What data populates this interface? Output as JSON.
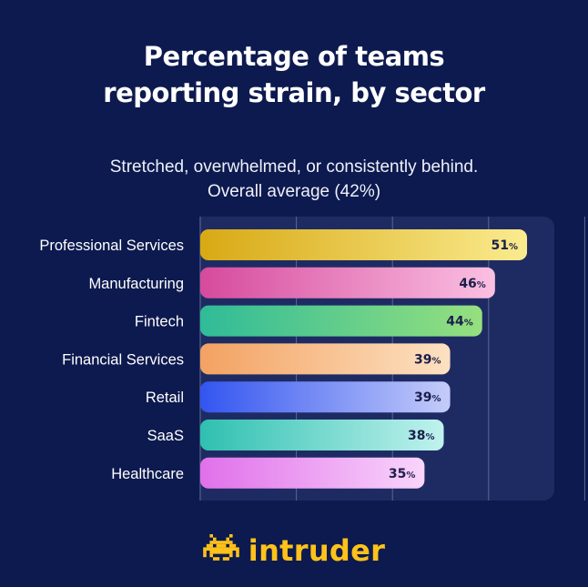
{
  "title_lines": [
    "Percentage of teams",
    "reporting strain, by sector"
  ],
  "subtitle_lines": [
    "Stretched, overwhelmed, or consistently behind.",
    "Overall average (42%)"
  ],
  "brand": {
    "name": "intruder",
    "logo_icon": "space-invader-icon",
    "color": "#ffc21a"
  },
  "colors": {
    "background": "#0d1a4f",
    "panel": "#1e2b63",
    "label_text": "#ffffff",
    "value_text": "#1b1f4a"
  },
  "chart_data": {
    "type": "bar",
    "orientation": "horizontal",
    "title": "Percentage of teams reporting strain, by sector",
    "subtitle": "Stretched, overwhelmed, or consistently behind. Overall average (42%)",
    "categories": [
      "Professional Services",
      "Manufacturing",
      "Fintech",
      "Financial Services",
      "Retail",
      "SaaS",
      "Healthcare"
    ],
    "values": [
      51,
      46,
      44,
      39,
      39,
      38,
      35
    ],
    "value_suffix": "%",
    "xlim": [
      0,
      60
    ],
    "grid": true,
    "bar_gradients": [
      [
        "#d8a914",
        "#faeb8e"
      ],
      [
        "#d64a9d",
        "#fbc0e2"
      ],
      [
        "#2fbb98",
        "#96e07e"
      ],
      [
        "#f3a262",
        "#fde1c2"
      ],
      [
        "#3255f0",
        "#c5ccfa"
      ],
      [
        "#2ec0b0",
        "#c0f2ee"
      ],
      [
        "#e070ea",
        "#f9d5fb"
      ]
    ]
  }
}
